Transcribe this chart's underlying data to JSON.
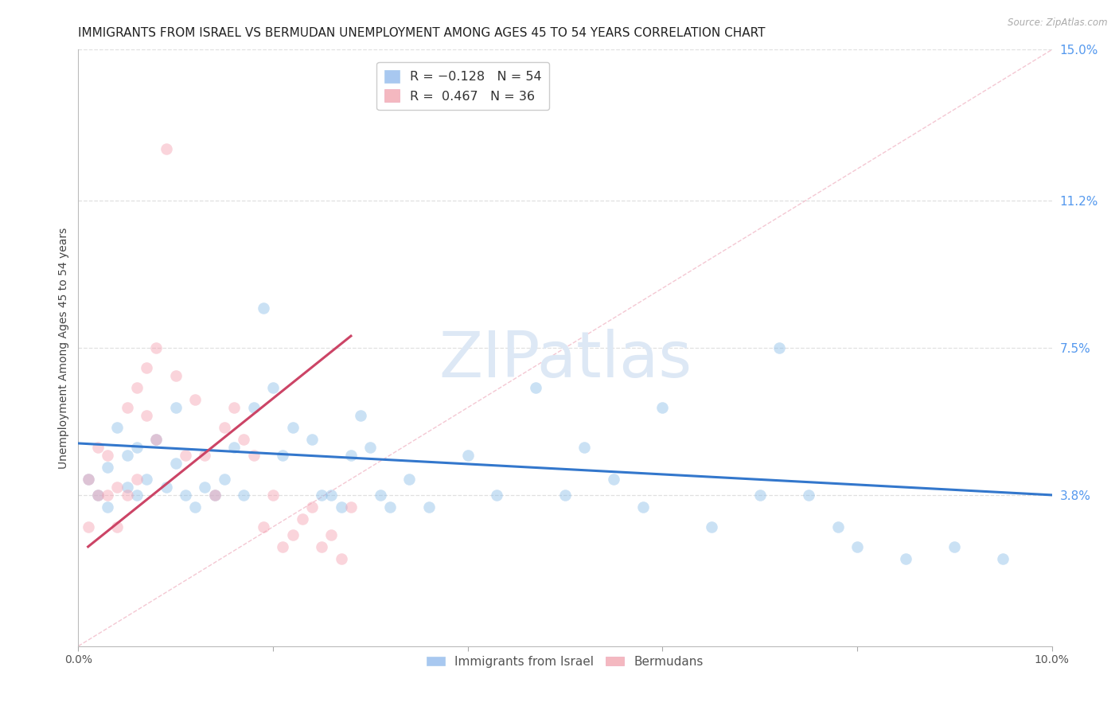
{
  "title": "IMMIGRANTS FROM ISRAEL VS BERMUDAN UNEMPLOYMENT AMONG AGES 45 TO 54 YEARS CORRELATION CHART",
  "source": "Source: ZipAtlas.com",
  "ylabel": "Unemployment Among Ages 45 to 54 years",
  "xlim": [
    0.0,
    0.1
  ],
  "ylim": [
    0.0,
    0.15
  ],
  "xtick_positions": [
    0.0,
    0.02,
    0.04,
    0.06,
    0.08,
    0.1
  ],
  "xticklabels": [
    "0.0%",
    "",
    "",
    "",
    "",
    "10.0%"
  ],
  "yticks_right": [
    0.038,
    0.075,
    0.112,
    0.15
  ],
  "yticklabels_right": [
    "3.8%",
    "7.5%",
    "11.2%",
    "15.0%"
  ],
  "legend1_label": "R = −0.128   N = 54",
  "legend2_label": "R =  0.467   N = 36",
  "legend1_color": "#a8c8f0",
  "legend2_color": "#f4b8c0",
  "watermark": "ZIPatlas",
  "watermark_color": "#dde8f5",
  "blue_scatter_x": [
    0.001,
    0.002,
    0.003,
    0.003,
    0.004,
    0.005,
    0.005,
    0.006,
    0.006,
    0.007,
    0.008,
    0.009,
    0.01,
    0.01,
    0.011,
    0.012,
    0.013,
    0.014,
    0.015,
    0.016,
    0.017,
    0.018,
    0.019,
    0.02,
    0.021,
    0.022,
    0.024,
    0.025,
    0.026,
    0.027,
    0.028,
    0.029,
    0.03,
    0.031,
    0.032,
    0.034,
    0.036,
    0.04,
    0.043,
    0.047,
    0.05,
    0.052,
    0.055,
    0.058,
    0.06,
    0.065,
    0.07,
    0.072,
    0.075,
    0.078,
    0.08,
    0.085,
    0.09,
    0.095
  ],
  "blue_scatter_y": [
    0.042,
    0.038,
    0.035,
    0.045,
    0.055,
    0.04,
    0.048,
    0.038,
    0.05,
    0.042,
    0.052,
    0.04,
    0.046,
    0.06,
    0.038,
    0.035,
    0.04,
    0.038,
    0.042,
    0.05,
    0.038,
    0.06,
    0.085,
    0.065,
    0.048,
    0.055,
    0.052,
    0.038,
    0.038,
    0.035,
    0.048,
    0.058,
    0.05,
    0.038,
    0.035,
    0.042,
    0.035,
    0.048,
    0.038,
    0.065,
    0.038,
    0.05,
    0.042,
    0.035,
    0.06,
    0.03,
    0.038,
    0.075,
    0.038,
    0.03,
    0.025,
    0.022,
    0.025,
    0.022
  ],
  "pink_scatter_x": [
    0.001,
    0.001,
    0.002,
    0.002,
    0.003,
    0.003,
    0.004,
    0.004,
    0.005,
    0.005,
    0.006,
    0.006,
    0.007,
    0.007,
    0.008,
    0.008,
    0.009,
    0.01,
    0.011,
    0.012,
    0.013,
    0.014,
    0.015,
    0.016,
    0.017,
    0.018,
    0.019,
    0.02,
    0.021,
    0.022,
    0.023,
    0.024,
    0.025,
    0.026,
    0.027,
    0.028
  ],
  "pink_scatter_y": [
    0.042,
    0.03,
    0.05,
    0.038,
    0.038,
    0.048,
    0.04,
    0.03,
    0.06,
    0.038,
    0.065,
    0.042,
    0.07,
    0.058,
    0.075,
    0.052,
    0.125,
    0.068,
    0.048,
    0.062,
    0.048,
    0.038,
    0.055,
    0.06,
    0.052,
    0.048,
    0.03,
    0.038,
    0.025,
    0.028,
    0.032,
    0.035,
    0.025,
    0.028,
    0.022,
    0.035
  ],
  "blue_line_x": [
    0.0,
    0.1
  ],
  "blue_line_y": [
    0.051,
    0.038
  ],
  "pink_line_x": [
    0.001,
    0.028
  ],
  "pink_line_y": [
    0.025,
    0.078
  ],
  "diag_line_x": [
    0.0,
    0.1
  ],
  "diag_line_y": [
    0.0,
    0.15
  ],
  "background_color": "#ffffff",
  "grid_color": "#e0e0e0",
  "title_fontsize": 11,
  "axis_label_fontsize": 10,
  "tick_fontsize": 10,
  "scatter_size": 110,
  "scatter_alpha": 0.45,
  "blue_color": "#8bbde8",
  "pink_color": "#f5a0b0",
  "blue_line_color": "#3377cc",
  "pink_line_color": "#cc4466"
}
